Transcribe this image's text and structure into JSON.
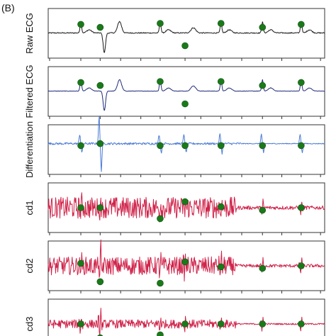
{
  "figure": {
    "label": "(B)"
  },
  "colors": {
    "raw": "#1a1a1a",
    "filtered": "#1f2a7a",
    "differentiation": "#4a7ad6",
    "detail": "#d0234a",
    "marker": "#1a7a1a",
    "frame": "#333333"
  },
  "chart_data": [
    {
      "type": "line",
      "ylabel": "Raw ECG",
      "grid": false,
      "style": "ecg",
      "amplitude": 1.0,
      "noise": 0.05,
      "markers": [
        {
          "x": 0.118,
          "y": 0.32
        },
        {
          "x": 0.188,
          "y": 0.38
        },
        {
          "x": 0.405,
          "y": 0.3
        },
        {
          "x": 0.495,
          "y": 0.75
        },
        {
          "x": 0.625,
          "y": 0.3
        },
        {
          "x": 0.775,
          "y": 0.38
        },
        {
          "x": 0.915,
          "y": 0.32
        }
      ]
    },
    {
      "type": "line",
      "ylabel": "Filtered ECG",
      "grid": false,
      "style": "ecg",
      "amplitude": 1.0,
      "noise": 0.02,
      "markers": [
        {
          "x": 0.118,
          "y": 0.32
        },
        {
          "x": 0.188,
          "y": 0.38
        },
        {
          "x": 0.405,
          "y": 0.3
        },
        {
          "x": 0.495,
          "y": 0.75
        },
        {
          "x": 0.625,
          "y": 0.3
        },
        {
          "x": 0.775,
          "y": 0.38
        },
        {
          "x": 0.915,
          "y": 0.32
        }
      ]
    },
    {
      "type": "line",
      "ylabel": "Differentiation",
      "grid": false,
      "style": "deriv",
      "amplitude": 1.0,
      "noise": 0.08,
      "markers": [
        {
          "x": 0.118,
          "y": 0.42
        },
        {
          "x": 0.188,
          "y": 0.38
        },
        {
          "x": 0.405,
          "y": 0.42
        },
        {
          "x": 0.495,
          "y": 0.42
        },
        {
          "x": 0.625,
          "y": 0.42
        },
        {
          "x": 0.775,
          "y": 0.42
        },
        {
          "x": 0.915,
          "y": 0.42
        }
      ]
    },
    {
      "type": "line",
      "ylabel": "cd1",
      "grid": false,
      "style": "detail",
      "amplitude": 1.0,
      "noise": 0.45,
      "markers": [
        {
          "x": 0.118,
          "y": 0.5
        },
        {
          "x": 0.188,
          "y": 0.5
        },
        {
          "x": 0.405,
          "y": 0.72
        },
        {
          "x": 0.495,
          "y": 0.38
        },
        {
          "x": 0.625,
          "y": 0.48
        },
        {
          "x": 0.775,
          "y": 0.55
        },
        {
          "x": 0.915,
          "y": 0.5
        }
      ]
    },
    {
      "type": "line",
      "ylabel": "cd2",
      "grid": false,
      "style": "detail",
      "amplitude": 1.0,
      "noise": 0.38,
      "markers": [
        {
          "x": 0.118,
          "y": 0.45
        },
        {
          "x": 0.188,
          "y": 0.82
        },
        {
          "x": 0.405,
          "y": 0.85
        },
        {
          "x": 0.495,
          "y": 0.42
        },
        {
          "x": 0.625,
          "y": 0.52
        },
        {
          "x": 0.775,
          "y": 0.55
        },
        {
          "x": 0.915,
          "y": 0.5
        }
      ]
    },
    {
      "type": "line",
      "ylabel": "cd3",
      "grid": false,
      "style": "detail",
      "amplitude": 1.0,
      "noise": 0.18,
      "markers": [
        {
          "x": 0.118,
          "y": 0.5
        },
        {
          "x": 0.188,
          "y": 0.78
        },
        {
          "x": 0.405,
          "y": 0.72
        },
        {
          "x": 0.495,
          "y": 0.5
        },
        {
          "x": 0.625,
          "y": 0.5
        },
        {
          "x": 0.775,
          "y": 0.5
        },
        {
          "x": 0.915,
          "y": 0.5
        }
      ]
    }
  ]
}
